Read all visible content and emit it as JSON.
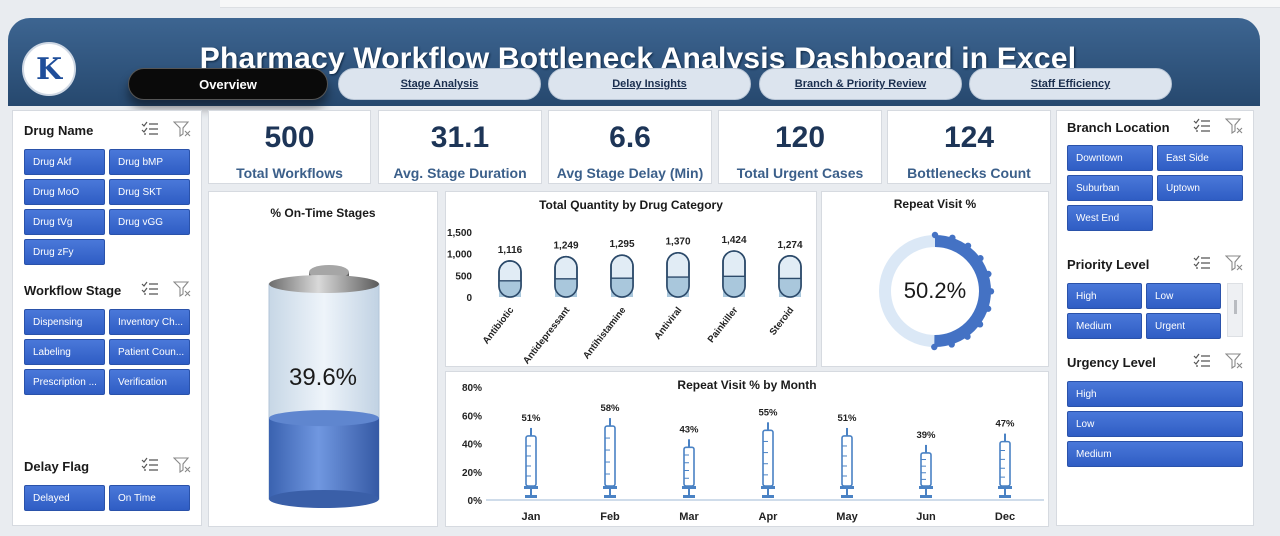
{
  "app": {
    "title": "Pharmacy Workflow Bottleneck Analysis Dashboard in Excel",
    "logo_letter": "K"
  },
  "tabs": [
    {
      "label": "Overview",
      "active": true
    },
    {
      "label": "Stage Analysis",
      "active": false
    },
    {
      "label": "Delay Insights",
      "active": false
    },
    {
      "label": "Branch & Priority Review",
      "active": false
    },
    {
      "label": "Staff Efficiency",
      "active": false
    }
  ],
  "kpis": [
    {
      "value": "500",
      "label": "Total Workflows"
    },
    {
      "value": "31.1",
      "label": "Avg. Stage Duration"
    },
    {
      "value": "6.6",
      "label": "Avg Stage Delay (Min)"
    },
    {
      "value": "120",
      "label": "Total Urgent Cases"
    },
    {
      "value": "124",
      "label": "Bottlenecks Count"
    }
  ],
  "slicers_left": {
    "drug_name": {
      "title": "Drug Name",
      "items": [
        "Drug Akf",
        "Drug bMP",
        "Drug MoO",
        "Drug SKT",
        "Drug tVg",
        "Drug vGG",
        "Drug zFy"
      ]
    },
    "workflow_stage": {
      "title": "Workflow Stage",
      "items": [
        "Dispensing",
        "Inventory Ch...",
        "Labeling",
        "Patient Coun...",
        "Prescription ...",
        "Verification"
      ]
    },
    "delay_flag": {
      "title": "Delay Flag",
      "items": [
        "Delayed",
        "On Time"
      ]
    }
  },
  "slicers_right": {
    "branch_location": {
      "title": "Branch Location",
      "items": [
        "Downtown",
        "East Side",
        "Suburban",
        "Uptown",
        "West End"
      ]
    },
    "priority_level": {
      "title": "Priority Level",
      "items": [
        "High",
        "Low",
        "Medium",
        "Urgent"
      ]
    },
    "urgency_level": {
      "title": "Urgency Level",
      "items": [
        "High",
        "Low",
        "Medium"
      ]
    }
  },
  "ontime": {
    "title": "% On-Time Stages",
    "value_label": "39.6%",
    "value": 0.396
  },
  "repeat_visit": {
    "title": "Repeat Visit %",
    "value_label": "50.2%",
    "value": 0.502
  },
  "chart_data": [
    {
      "type": "bar",
      "title": "Total Quantity by Drug Category",
      "categories": [
        "Antibiotic",
        "Antidepressant",
        "Antihistamine",
        "Antiviral",
        "Painkiller",
        "Steroid"
      ],
      "values": [
        1116,
        1249,
        1295,
        1370,
        1424,
        1274
      ],
      "data_labels": [
        "1,116",
        "1,249",
        "1,295",
        "1,370",
        "1,424",
        "1,274"
      ],
      "y_ticks": [
        "1,500",
        "1,000",
        "500",
        "0"
      ],
      "ylim": [
        0,
        1500
      ]
    },
    {
      "type": "bar",
      "title": "Repeat Visit % by Month",
      "categories": [
        "Jan",
        "Feb",
        "Mar",
        "Apr",
        "May",
        "Jun",
        "Dec"
      ],
      "values": [
        51,
        58,
        43,
        55,
        51,
        39,
        47
      ],
      "data_labels": [
        "51%",
        "58%",
        "43%",
        "55%",
        "51%",
        "39%",
        "47%"
      ],
      "y_ticks": [
        "80%",
        "60%",
        "40%",
        "20%",
        "0%"
      ],
      "ylim": [
        0,
        80
      ]
    }
  ],
  "colors": {
    "header": "#2f5580",
    "chip": "#3a68cf",
    "accent": "#4472c4",
    "kpi_text": "#1d3557"
  }
}
